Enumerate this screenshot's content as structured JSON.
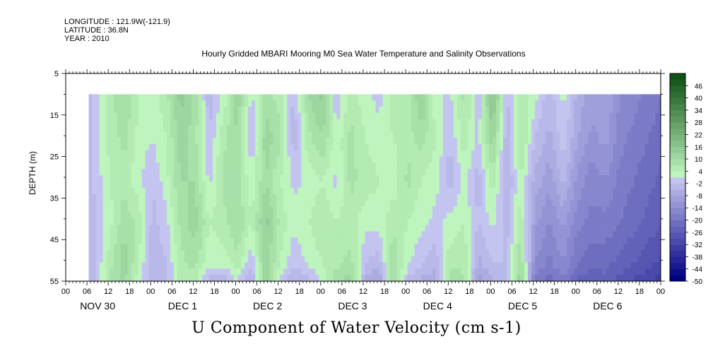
{
  "header": {
    "longitude": "LONGITUDE : 121.9W(-121.9)",
    "latitude": "LATITUDE : 36.8N",
    "year": "YEAR : 2010"
  },
  "chart_data": {
    "type": "heatmap",
    "title": "Hourly Gridded MBARI Mooring M0 Sea Water Temperature and Salinity Observations",
    "xlabel": "U Component of Water Velocity (cm s-1)",
    "ylabel": "DEPTH (m)",
    "ylim": [
      5,
      55
    ],
    "yticks": [
      "5",
      "15",
      "25",
      "35",
      "45",
      "55"
    ],
    "y_inverted": true,
    "hour_ticks": [
      "00",
      "06",
      "12",
      "18",
      "00",
      "06",
      "12",
      "18",
      "00",
      "06",
      "12",
      "18",
      "00",
      "06",
      "12",
      "18",
      "00",
      "06",
      "12",
      "18",
      "00",
      "06",
      "12",
      "18",
      "00",
      "06",
      "12",
      "18",
      "00"
    ],
    "day_labels": [
      "NOV 30",
      "DEC  1",
      "DEC  2",
      "DEC  3",
      "DEC  4",
      "DEC  5",
      "DEC  6"
    ],
    "x_range_hours": [
      0,
      168
    ],
    "data_start_hour": 6.5,
    "data_depth_range": [
      10,
      55
    ],
    "colorbar": {
      "labels": [
        "46",
        "40",
        "34",
        "28",
        "22",
        "16",
        "10",
        "4",
        "-2",
        "-8",
        "-14",
        "-20",
        "-26",
        "-32",
        "-38",
        "-44",
        "-50"
      ],
      "range": [
        -50,
        52
      ],
      "step": 3
    },
    "velocity_columns": {
      "hours": [
        6.5,
        12,
        16,
        20,
        24,
        28,
        32,
        36,
        40,
        44,
        48,
        52,
        56,
        60,
        64,
        68,
        72,
        76,
        80,
        84,
        88,
        92,
        96,
        100,
        104,
        108,
        112,
        116,
        120,
        124,
        128,
        132,
        136,
        140,
        144,
        148,
        152,
        156,
        160,
        164,
        168
      ],
      "depths": [
        10,
        20,
        30,
        40,
        50,
        55
      ],
      "values": [
        [
          -3,
          -2,
          -3,
          -4,
          -5,
          -5
        ],
        [
          6,
          5,
          4,
          3,
          6,
          7
        ],
        [
          10,
          8,
          6,
          9,
          12,
          10
        ],
        [
          4,
          3,
          2,
          6,
          4,
          2
        ],
        [
          2,
          1,
          -2,
          -3,
          -4,
          -5
        ],
        [
          6,
          4,
          3,
          0,
          -2,
          -3
        ],
        [
          14,
          12,
          10,
          8,
          6,
          6
        ],
        [
          9,
          8,
          10,
          12,
          8,
          4
        ],
        [
          -4,
          -2,
          0,
          4,
          2,
          -4
        ],
        [
          2,
          6,
          8,
          6,
          2,
          -6
        ],
        [
          12,
          10,
          8,
          10,
          6,
          0
        ],
        [
          0,
          -2,
          2,
          4,
          -2,
          -6
        ],
        [
          8,
          12,
          10,
          14,
          12,
          14
        ],
        [
          6,
          8,
          4,
          6,
          4,
          0
        ],
        [
          -3,
          -4,
          0,
          2,
          -2,
          -6
        ],
        [
          10,
          6,
          2,
          4,
          2,
          -4
        ],
        [
          14,
          10,
          4,
          6,
          4,
          2
        ],
        [
          -2,
          2,
          0,
          4,
          6,
          10
        ],
        [
          6,
          8,
          8,
          6,
          8,
          12
        ],
        [
          2,
          4,
          6,
          2,
          -2,
          -6
        ],
        [
          0,
          2,
          4,
          2,
          -4,
          -10
        ],
        [
          6,
          4,
          2,
          6,
          10,
          12
        ],
        [
          4,
          6,
          8,
          4,
          2,
          -4
        ],
        [
          14,
          8,
          4,
          2,
          -2,
          -6
        ],
        [
          2,
          4,
          2,
          0,
          -4,
          -8
        ],
        [
          0,
          -2,
          -4,
          2,
          6,
          10
        ],
        [
          8,
          6,
          2,
          4,
          6,
          8
        ],
        [
          -2,
          0,
          -4,
          -2,
          -6,
          -10
        ],
        [
          18,
          12,
          6,
          2,
          -2,
          -6
        ],
        [
          -3,
          -4,
          -6,
          -4,
          -2,
          -4
        ],
        [
          6,
          8,
          4,
          6,
          10,
          14
        ],
        [
          2,
          -2,
          -6,
          -10,
          -14,
          -20
        ],
        [
          -4,
          -6,
          -10,
          -14,
          -18,
          -22
        ],
        [
          2,
          0,
          -4,
          -10,
          -14,
          -18
        ],
        [
          -6,
          -8,
          -12,
          -16,
          -20,
          -24
        ],
        [
          -10,
          -12,
          -16,
          -18,
          -22,
          -26
        ],
        [
          -8,
          -10,
          -14,
          -18,
          -22,
          -24
        ],
        [
          -14,
          -16,
          -18,
          -20,
          -24,
          -28
        ],
        [
          -16,
          -18,
          -20,
          -22,
          -26,
          -30
        ],
        [
          -18,
          -20,
          -22,
          -24,
          -28,
          -32
        ],
        [
          -20,
          -22,
          -24,
          -26,
          -30,
          -34
        ]
      ]
    }
  }
}
